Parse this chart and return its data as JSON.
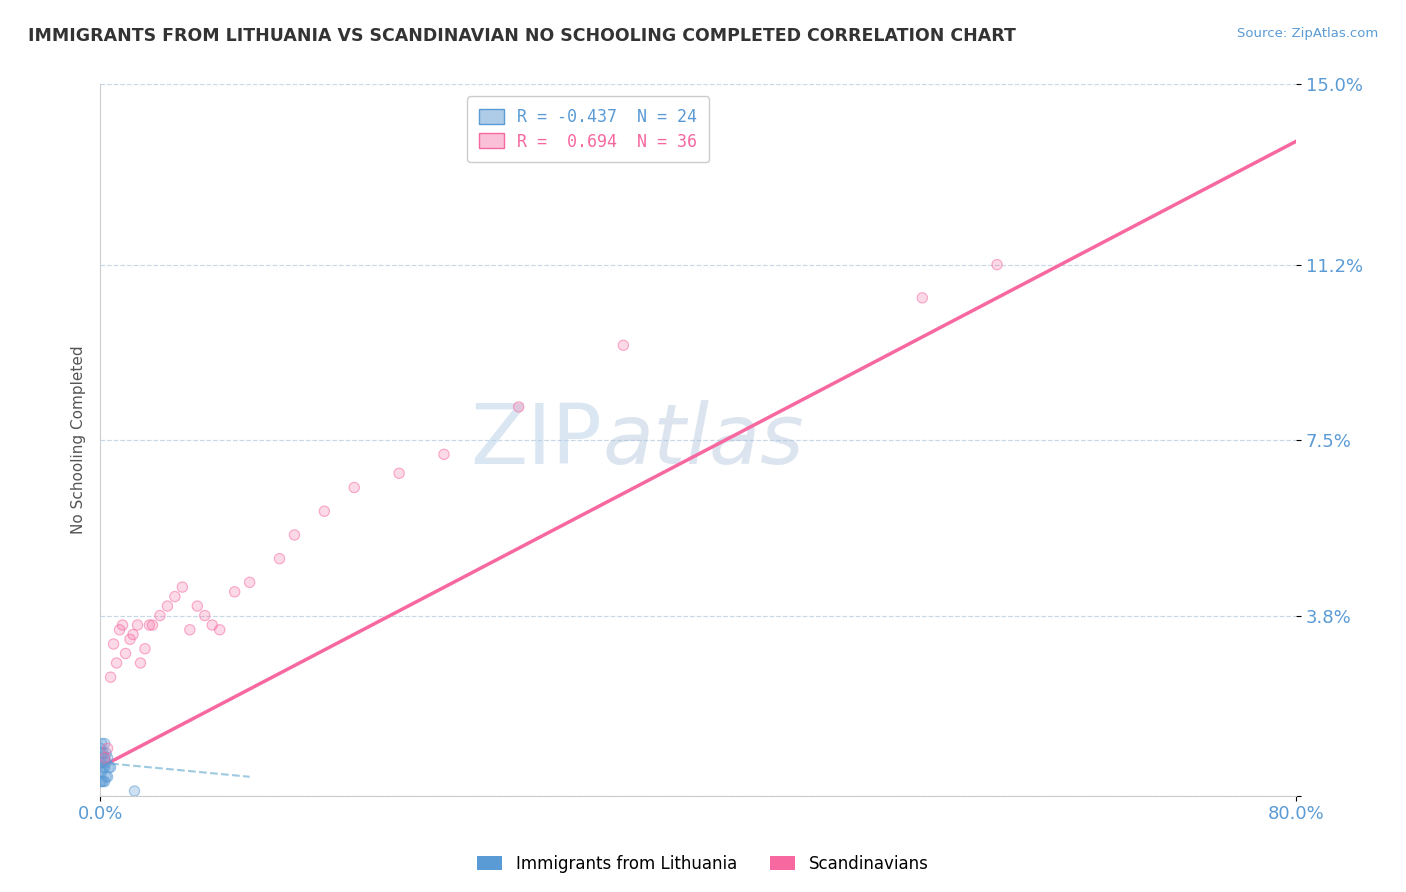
{
  "title": "IMMIGRANTS FROM LITHUANIA VS SCANDINAVIAN NO SCHOOLING COMPLETED CORRELATION CHART",
  "source": "Source: ZipAtlas.com",
  "ylabel": "No Schooling Completed",
  "xlim": [
    0.0,
    0.8
  ],
  "ylim": [
    0.0,
    0.15
  ],
  "xtick_vals": [
    0.0,
    0.8
  ],
  "xtick_labels": [
    "0.0%",
    "80.0%"
  ],
  "ytick_vals": [
    0.0,
    0.038,
    0.075,
    0.112,
    0.15
  ],
  "ytick_labels": [
    "",
    "3.8%",
    "7.5%",
    "11.2%",
    "15.0%"
  ],
  "legend_entries": [
    {
      "label": "R = -0.437",
      "label2": "N = 24",
      "color": "#5b9bd5",
      "facecolor": "#aecce8"
    },
    {
      "label": "R =  0.694",
      "label2": "N = 36",
      "color": "#f768a1",
      "facecolor": "#f9c0d8"
    }
  ],
  "scatter_lithuania": {
    "color": "#5b9bd5",
    "alpha": 0.55,
    "size": 55,
    "x": [
      0.0,
      0.0,
      0.0,
      0.0,
      0.001,
      0.001,
      0.001,
      0.001,
      0.001,
      0.002,
      0.002,
      0.002,
      0.003,
      0.003,
      0.003,
      0.003,
      0.004,
      0.004,
      0.004,
      0.005,
      0.005,
      0.006,
      0.007,
      0.023
    ],
    "y": [
      0.003,
      0.005,
      0.007,
      0.01,
      0.003,
      0.005,
      0.007,
      0.009,
      0.011,
      0.003,
      0.006,
      0.009,
      0.003,
      0.006,
      0.008,
      0.011,
      0.004,
      0.007,
      0.009,
      0.004,
      0.008,
      0.006,
      0.006,
      0.001
    ]
  },
  "scatter_scandinavian": {
    "color": "#f768a1",
    "alpha": 0.55,
    "size": 55,
    "x": [
      0.003,
      0.005,
      0.007,
      0.009,
      0.011,
      0.013,
      0.015,
      0.017,
      0.02,
      0.022,
      0.025,
      0.027,
      0.03,
      0.033,
      0.035,
      0.04,
      0.045,
      0.05,
      0.055,
      0.06,
      0.065,
      0.07,
      0.075,
      0.08,
      0.09,
      0.1,
      0.12,
      0.13,
      0.15,
      0.17,
      0.2,
      0.23,
      0.28,
      0.35,
      0.55,
      0.6
    ],
    "y": [
      0.008,
      0.01,
      0.025,
      0.032,
      0.028,
      0.035,
      0.036,
      0.03,
      0.033,
      0.034,
      0.036,
      0.028,
      0.031,
      0.036,
      0.036,
      0.038,
      0.04,
      0.042,
      0.044,
      0.035,
      0.04,
      0.038,
      0.036,
      0.035,
      0.043,
      0.045,
      0.05,
      0.055,
      0.06,
      0.065,
      0.068,
      0.072,
      0.082,
      0.095,
      0.105,
      0.112
    ]
  },
  "trendline_lithuania": {
    "color": "#9ecae1",
    "linestyle": "--",
    "x": [
      0.0,
      0.1
    ],
    "y": [
      0.007,
      0.004
    ]
  },
  "trendline_scandinavian": {
    "color": "#f768a1",
    "linestyle": "-",
    "x": [
      0.0,
      0.8
    ],
    "y": [
      0.006,
      0.138
    ]
  },
  "watermark_text": "ZIP",
  "watermark_text2": "atlas",
  "legend_bottom": [
    "Immigrants from Lithuania",
    "Scandinavians"
  ],
  "legend_bottom_colors": [
    "#5b9bd5",
    "#f768a1"
  ],
  "tick_color": "#5b9bd5",
  "grid_color": "#c8d8e8",
  "background_color": "#ffffff"
}
